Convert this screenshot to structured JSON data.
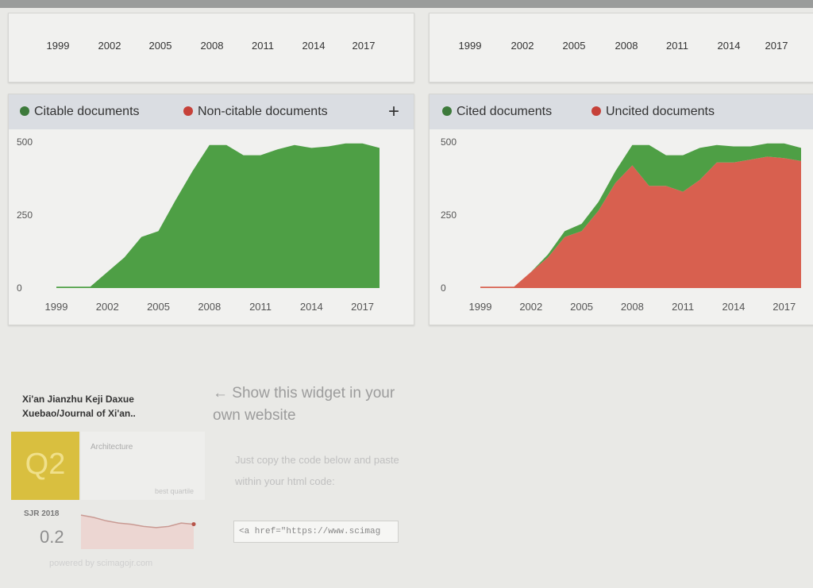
{
  "timeline_axis_left": [
    "1999",
    "2002",
    "2005",
    "2008",
    "2011",
    "2014",
    "2017"
  ],
  "timeline_axis_right": [
    "1999",
    "2002",
    "2005",
    "2008",
    "2011",
    "2014",
    "2017"
  ],
  "colors": {
    "citable": "#3d7a3b",
    "non_citable": "#c64139",
    "green_fill": "#4e9f45",
    "red_fill": "#d8604f",
    "sjr_tile": "#d9bf3f"
  },
  "chart_data": [
    {
      "type": "area",
      "legend": [
        {
          "name": "Citable documents"
        },
        {
          "name": "Non-citable documents"
        }
      ],
      "legend_position": "top",
      "plus_label": "+",
      "x_ticks": [
        "1999",
        "2002",
        "2005",
        "2008",
        "2011",
        "2014",
        "2017"
      ],
      "y_ticks": [
        "0",
        "250",
        "500"
      ],
      "xlim": [
        1999,
        2018
      ],
      "ylim": [
        0,
        500
      ],
      "x": [
        1999,
        2000,
        2001,
        2002,
        2003,
        2004,
        2005,
        2006,
        2007,
        2008,
        2009,
        2010,
        2011,
        2012,
        2013,
        2014,
        2015,
        2016,
        2017,
        2018
      ],
      "series": [
        {
          "name": "Citable documents",
          "values": [
            5,
            5,
            5,
            55,
            105,
            175,
            195,
            300,
            400,
            490,
            490,
            455,
            455,
            475,
            490,
            480,
            485,
            495,
            495,
            480
          ]
        },
        {
          "name": "Non-citable documents",
          "values": [
            0,
            0,
            0,
            0,
            0,
            0,
            0,
            0,
            0,
            0,
            0,
            0,
            0,
            0,
            0,
            0,
            0,
            0,
            0,
            0
          ]
        }
      ]
    },
    {
      "type": "area",
      "legend": [
        {
          "name": "Cited documents"
        },
        {
          "name": "Uncited documents"
        }
      ],
      "legend_position": "top",
      "x_ticks": [
        "1999",
        "2002",
        "2005",
        "2008",
        "2011",
        "2014",
        "2017"
      ],
      "y_ticks": [
        "0",
        "250",
        "500"
      ],
      "xlim": [
        1999,
        2018
      ],
      "ylim": [
        0,
        500
      ],
      "x": [
        1999,
        2000,
        2001,
        2002,
        2003,
        2004,
        2005,
        2006,
        2007,
        2008,
        2009,
        2010,
        2011,
        2012,
        2013,
        2014,
        2015,
        2016,
        2017,
        2018
      ],
      "series": [
        {
          "name": "Cited documents",
          "values": [
            0,
            0,
            0,
            0,
            10,
            20,
            25,
            30,
            40,
            70,
            140,
            105,
            125,
            110,
            60,
            55,
            45,
            45,
            50,
            45
          ]
        },
        {
          "name": "Uncited documents",
          "values": [
            5,
            5,
            5,
            55,
            105,
            175,
            195,
            265,
            360,
            420,
            350,
            350,
            330,
            370,
            430,
            430,
            440,
            450,
            445,
            435
          ]
        }
      ]
    }
  ],
  "widget": {
    "journal_title": "Xi'an Jianzhu Keji Daxue Xuebao/Journal of Xi'an..",
    "quartile": "Q2",
    "category": "Architecture",
    "category_sub": "best quartile",
    "sjr_year": "SJR 2018",
    "sjr_value": "0.2",
    "sparkline": [
      0.3,
      0.28,
      0.25,
      0.23,
      0.22,
      0.2,
      0.19,
      0.2,
      0.23,
      0.22
    ],
    "powered_by": "powered by scimagojr.com",
    "show_widget_text": "← Show this widget in your own website",
    "copy_instructions": "Just copy the code below and paste within your html code:",
    "embed_code": "<a href=\"https://www.scimag"
  }
}
